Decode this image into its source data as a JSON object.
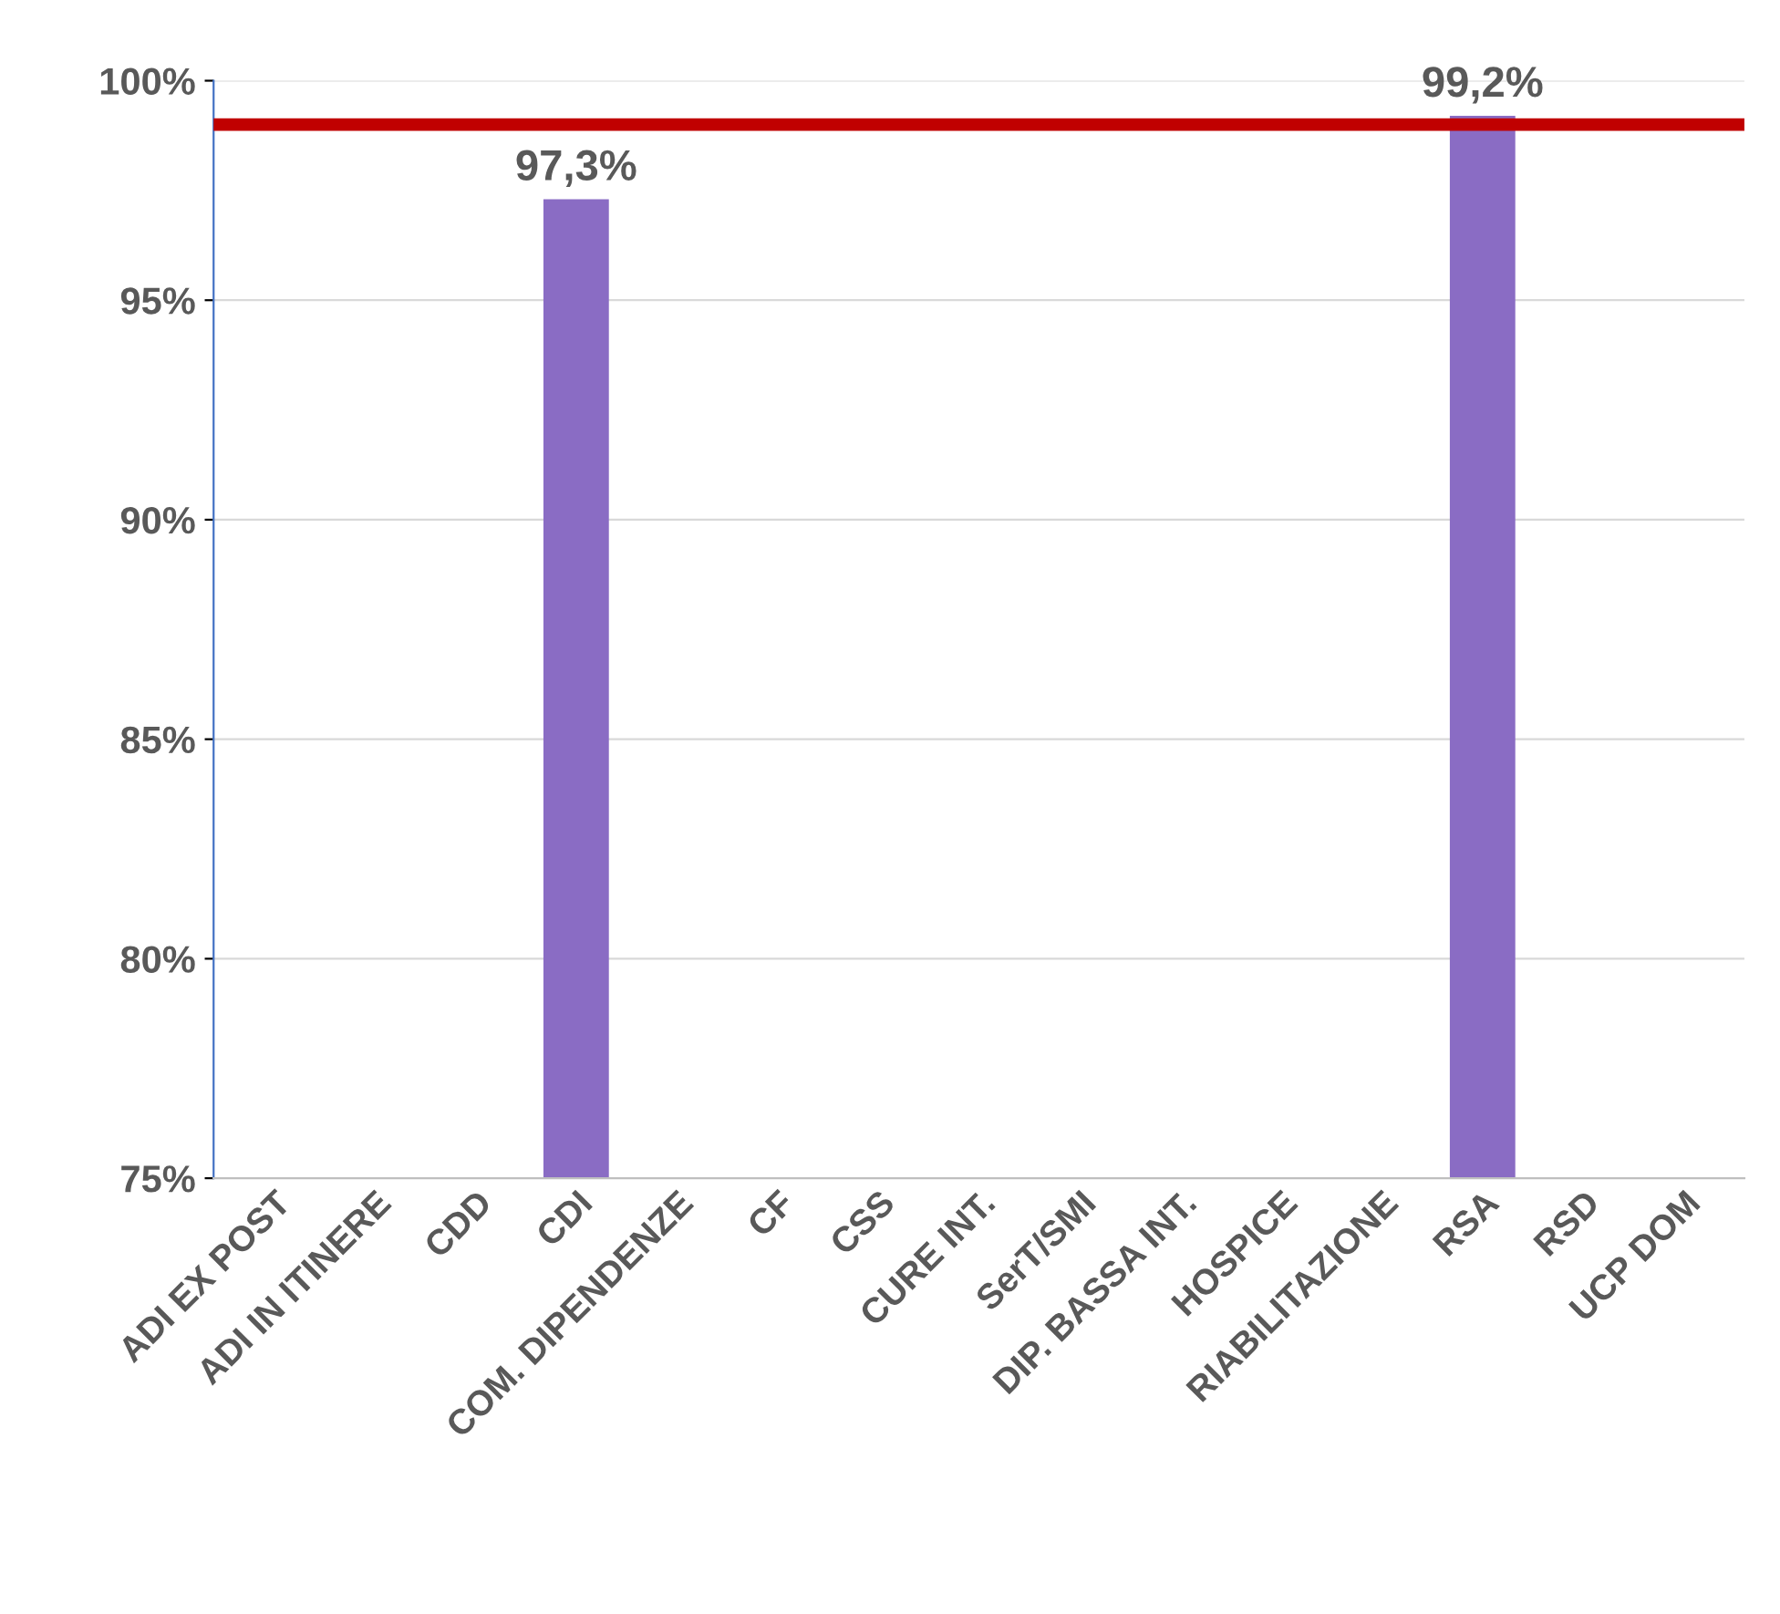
{
  "chart_data": {
    "type": "bar",
    "categories": [
      "ADI EX POST",
      "ADI IN ITINERE",
      "CDD",
      "CDI",
      "COM. DIPENDENZE",
      "CF",
      "CSS",
      "CURE INT.",
      "SerT/SMI",
      "DIP. BASSA INT.",
      "HOSPICE",
      "RIABILITAZIONE",
      "RSA",
      "RSD",
      "UCP DOM"
    ],
    "values": [
      null,
      null,
      null,
      97.3,
      null,
      null,
      null,
      null,
      null,
      null,
      null,
      null,
      99.2,
      null,
      null
    ],
    "value_labels": [
      null,
      null,
      null,
      "97,3%",
      null,
      null,
      null,
      null,
      null,
      null,
      null,
      null,
      "99,2%",
      null,
      null
    ],
    "color": "#8a6cc4",
    "ylim": [
      75,
      100
    ],
    "yticks": [
      {
        "value": 75,
        "label": "75%"
      },
      {
        "value": 80,
        "label": "80%"
      },
      {
        "value": 85,
        "label": "85%"
      },
      {
        "value": 90,
        "label": "90%"
      },
      {
        "value": 95,
        "label": "95%"
      },
      {
        "value": 100,
        "label": "100%"
      }
    ],
    "ref_lines": [
      {
        "axis": "y",
        "value": 99,
        "color": "#c00000"
      }
    ],
    "grid": "y"
  }
}
